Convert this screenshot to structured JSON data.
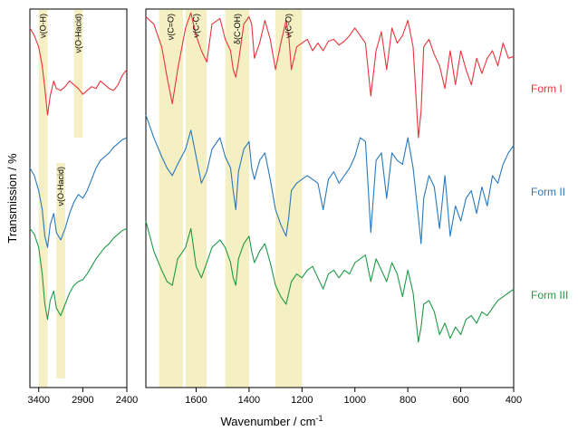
{
  "figure": {
    "ylabel": "Transmission / %",
    "xlabel_main": "Wavenumber / cm",
    "xlabel_sup": "-1"
  },
  "colors": {
    "form_i": "#e8343c",
    "form_ii": "#2878be",
    "form_iii": "#1e9a46",
    "band_highlight": "#f5efc4",
    "axis": "#000000"
  },
  "chart_data": [
    {
      "type": "line",
      "panel": "left",
      "xlim": [
        3500,
        2400
      ],
      "x_ticks": [
        3400,
        2900,
        2400
      ],
      "y_ticks": "none",
      "bands": [
        {
          "label": "ν(O-H)",
          "from": 3400,
          "to": 3300
        },
        {
          "label": "ν(O-Hacid)",
          "from": 3000,
          "to": 2900
        },
        {
          "label": "ν(O-Hacid)",
          "from": 3200,
          "to": 3100
        }
      ],
      "x": [
        3500,
        3450,
        3400,
        3360,
        3330,
        3300,
        3270,
        3230,
        3200,
        3150,
        3100,
        3050,
        3000,
        2950,
        2900,
        2850,
        2800,
        2750,
        2700,
        2650,
        2600,
        2550,
        2500,
        2450,
        2400
      ],
      "series": [
        {
          "name": "Form I",
          "values": [
            95.0,
            93.0,
            90.0,
            85.0,
            79.0,
            72.0,
            77.0,
            81.0,
            79.0,
            78.5,
            79.5,
            81.0,
            80.0,
            79.0,
            77.5,
            78.5,
            79.5,
            79.0,
            81.0,
            80.0,
            79.0,
            78.5,
            80.0,
            82.5,
            84.0
          ]
        },
        {
          "name": "Form II",
          "values": [
            58.0,
            56.0,
            52.0,
            47.0,
            40.0,
            37.0,
            43.0,
            46.0,
            41.0,
            39.0,
            42.0,
            46.0,
            49.0,
            51.0,
            50.0,
            52.0,
            55.0,
            58.0,
            60.0,
            61.0,
            62.0,
            63.5,
            64.5,
            65.5,
            66.0
          ]
        },
        {
          "name": "Form III",
          "values": [
            42.0,
            40.5,
            37.0,
            30.0,
            22.0,
            18.0,
            23.0,
            25.5,
            21.0,
            19.0,
            22.0,
            25.0,
            27.0,
            28.0,
            28.5,
            30.0,
            32.0,
            34.0,
            35.5,
            37.0,
            38.0,
            39.5,
            40.5,
            41.5,
            42.0
          ]
        }
      ]
    },
    {
      "type": "line",
      "panel": "right",
      "xlim": [
        1790,
        400
      ],
      "x_ticks": [
        1600,
        1400,
        1200,
        1000,
        800,
        600,
        400
      ],
      "y_ticks": "none",
      "bands": [
        {
          "label": "ν(C=O)",
          "from": 1740,
          "to": 1650
        },
        {
          "label": "ν(C-C)",
          "from": 1640,
          "to": 1560
        },
        {
          "label": "δ(C-OH)",
          "from": 1490,
          "to": 1400
        },
        {
          "label": "ν(C-O)",
          "from": 1300,
          "to": 1200
        }
      ],
      "x": [
        1790,
        1760,
        1730,
        1710,
        1690,
        1670,
        1640,
        1620,
        1600,
        1580,
        1560,
        1540,
        1510,
        1490,
        1470,
        1460,
        1450,
        1440,
        1420,
        1400,
        1390,
        1380,
        1360,
        1340,
        1320,
        1300,
        1280,
        1260,
        1250,
        1240,
        1220,
        1200,
        1180,
        1160,
        1140,
        1120,
        1100,
        1080,
        1060,
        1040,
        1020,
        1000,
        980,
        960,
        940,
        920,
        900,
        880,
        860,
        840,
        820,
        800,
        780,
        760,
        750,
        740,
        720,
        700,
        680,
        660,
        640,
        620,
        600,
        580,
        560,
        540,
        520,
        500,
        480,
        460,
        440,
        420,
        400
      ],
      "series": [
        {
          "name": "Form I",
          "values": [
            98.0,
            96.0,
            90.0,
            82.0,
            75.0,
            84.0,
            95.0,
            99.0,
            93.0,
            89.0,
            86.0,
            96.0,
            97.5,
            92.0,
            89.0,
            84.0,
            82.0,
            86.0,
            96.0,
            98.0,
            96.0,
            87.0,
            91.0,
            97.0,
            92.0,
            84.0,
            91.0,
            97.0,
            93.0,
            84.0,
            90.0,
            91.0,
            92.0,
            89.0,
            91.0,
            89.0,
            91.5,
            92.0,
            90.5,
            91.5,
            93.0,
            95.0,
            93.0,
            91.0,
            77.0,
            89.0,
            94.0,
            84.0,
            95.0,
            91.0,
            93.0,
            97.0,
            90.0,
            66.0,
            73.0,
            90.0,
            92.0,
            88.0,
            85.0,
            79.0,
            89.0,
            80.0,
            89.0,
            84.0,
            80.0,
            87.0,
            83.0,
            87.0,
            89.0,
            85.0,
            91.0,
            87.0,
            87.5
          ]
        },
        {
          "name": "Form II",
          "values": [
            72.0,
            66.0,
            61.0,
            58.0,
            56.0,
            59.0,
            63.0,
            68.0,
            61.0,
            54.0,
            57.0,
            63.0,
            66.0,
            61.0,
            58.0,
            52.0,
            47.0,
            57.0,
            63.0,
            65.0,
            58.0,
            55.0,
            60.0,
            62.0,
            55.0,
            47.0,
            43.0,
            40.0,
            45.0,
            52.0,
            54.0,
            55.0,
            56.0,
            55.0,
            54.0,
            47.0,
            55.0,
            57.0,
            54.0,
            56.0,
            58.0,
            61.0,
            66.0,
            65.0,
            41.0,
            60.0,
            62.0,
            50.0,
            62.0,
            60.0,
            59.0,
            66.0,
            58.0,
            45.0,
            38.0,
            50.0,
            56.0,
            53.0,
            42.0,
            56.0,
            40.0,
            48.0,
            44.0,
            50.0,
            52.0,
            46.0,
            53.0,
            48.0,
            56.0,
            54.0,
            59.0,
            62.0,
            64.0
          ]
        },
        {
          "name": "Form III",
          "values": [
            44.0,
            36.0,
            31.0,
            28.0,
            27.0,
            34.0,
            37.0,
            42.0,
            32.0,
            29.0,
            33.0,
            37.0,
            39.0,
            37.0,
            33.0,
            29.0,
            27.0,
            34.0,
            38.0,
            40.0,
            36.0,
            33.0,
            36.0,
            38.0,
            33.0,
            27.0,
            24.0,
            22.0,
            25.0,
            28.0,
            30.0,
            29.0,
            31.0,
            32.0,
            29.0,
            26.0,
            30.0,
            31.0,
            29.0,
            31.0,
            30.0,
            33.0,
            34.0,
            35.0,
            28.0,
            34.0,
            31.0,
            28.0,
            33.0,
            30.0,
            24.0,
            31.0,
            25.0,
            12.0,
            16.0,
            22.0,
            23.0,
            20.0,
            14.0,
            17.0,
            13.0,
            16.0,
            14.0,
            18.0,
            19.0,
            17.0,
            20.0,
            19.0,
            21.0,
            23.0,
            24.0,
            25.0,
            26.0
          ]
        }
      ]
    }
  ]
}
